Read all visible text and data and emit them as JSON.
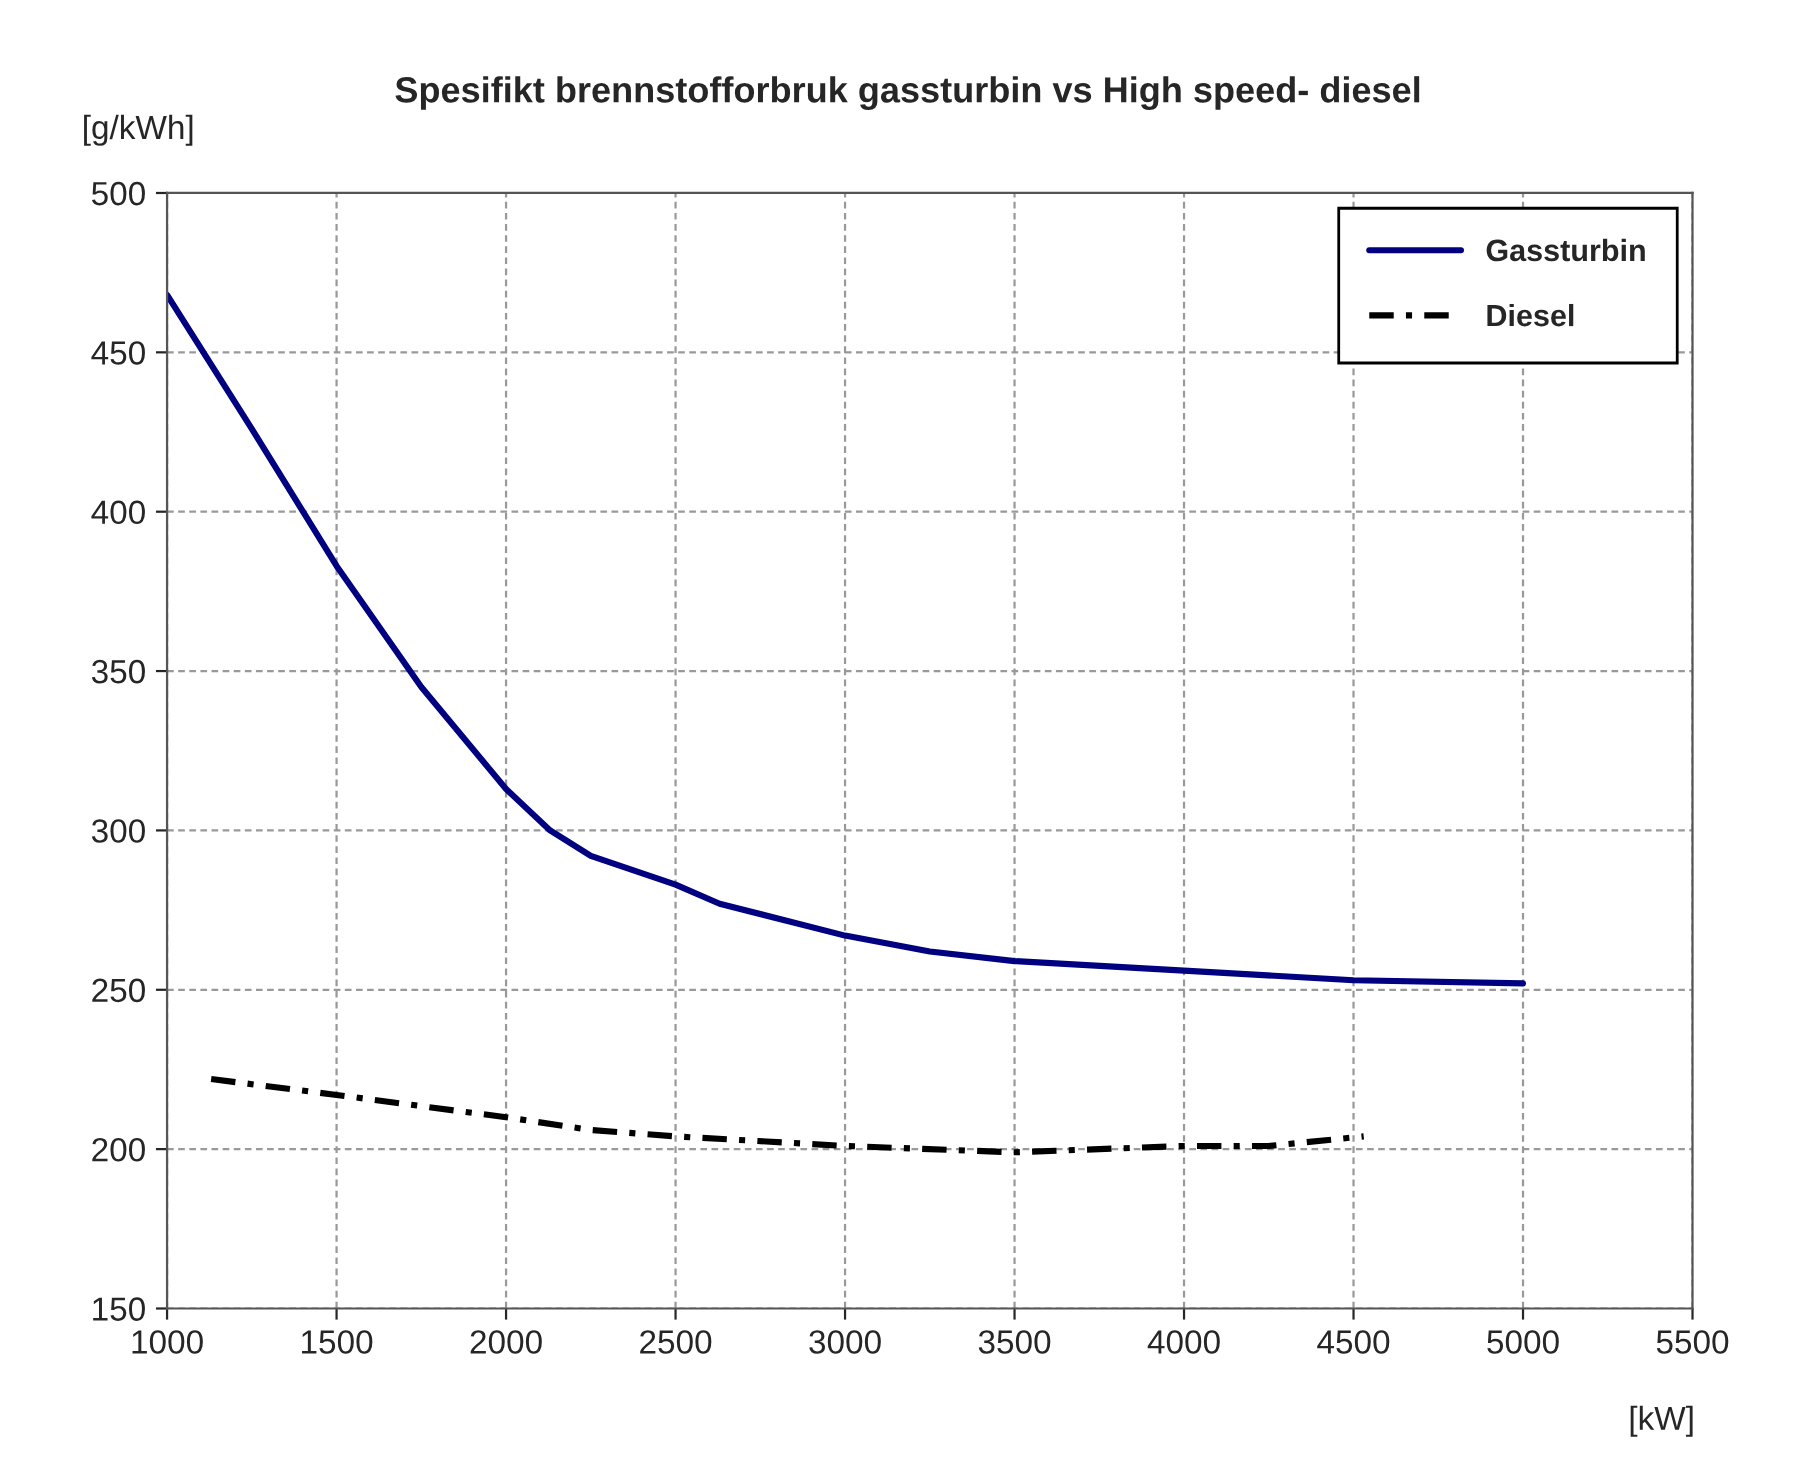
{
  "chart_data": {
    "type": "line",
    "title": "Spesifikt brennstofforbruk gassturbin vs High speed- diesel",
    "xlabel": "[kW]",
    "ylabel": "[g/kWh]",
    "xlim": [
      1000,
      5500
    ],
    "xticks": [
      1000,
      1500,
      2000,
      2500,
      3000,
      3500,
      4000,
      4500,
      5000,
      5500
    ],
    "ylim": [
      150,
      500
    ],
    "yticks": [
      150,
      200,
      250,
      300,
      350,
      400,
      450,
      500
    ],
    "grid": true,
    "legend": "top right",
    "series": [
      {
        "name": "Gassturbin",
        "color": "#000080",
        "line_style": "solid",
        "x": [
          1000,
          1250,
          1500,
          1750,
          2000,
          2130,
          2250,
          2500,
          2630,
          3000,
          3250,
          3500,
          4000,
          4500,
          5000
        ],
        "values": [
          468,
          426,
          383,
          345,
          313,
          300,
          292,
          283,
          277,
          267,
          262,
          259,
          256,
          253,
          252
        ]
      },
      {
        "name": "Diesel",
        "color": "#000000",
        "line_style": "dashdot",
        "x": [
          1130,
          1500,
          2000,
          2250,
          2500,
          3000,
          3500,
          4000,
          4250,
          4530
        ],
        "values": [
          222,
          217,
          210,
          206,
          204,
          201,
          199,
          201,
          201,
          204
        ]
      }
    ]
  }
}
